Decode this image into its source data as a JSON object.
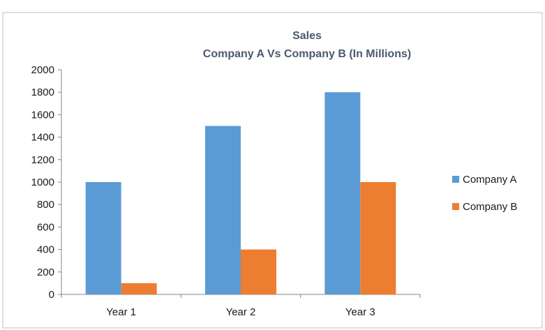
{
  "chart_data": {
    "type": "bar",
    "title": "Sales",
    "subtitle": "Company A Vs Company B (In Millions)",
    "categories": [
      "Year 1",
      "Year 2",
      "Year 3"
    ],
    "series": [
      {
        "name": "Company A",
        "values": [
          1000,
          1500,
          1800
        ],
        "color": "#5b9bd5"
      },
      {
        "name": "Company B",
        "values": [
          100,
          400,
          1000
        ],
        "color": "#ed7d31"
      }
    ],
    "ylim": [
      0,
      2000
    ],
    "yticks": [
      0,
      200,
      400,
      600,
      800,
      1000,
      1200,
      1400,
      1600,
      1800,
      2000
    ],
    "ytick_labels": [
      "0",
      "200",
      "400",
      "600",
      "800",
      "1000",
      "1200",
      "1400",
      "1600",
      "1800",
      "2000"
    ],
    "grid": false,
    "legend_position": "right"
  }
}
